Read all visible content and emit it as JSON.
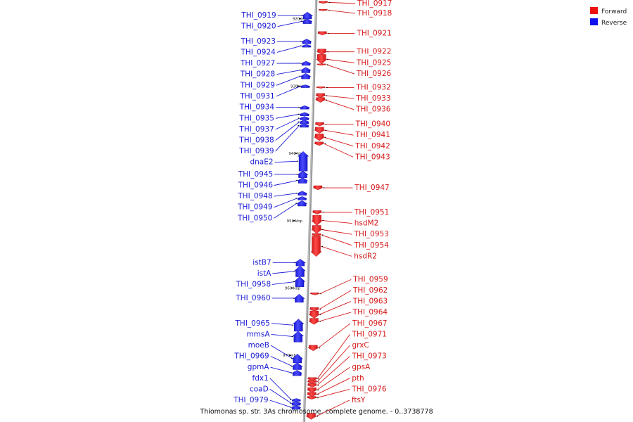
{
  "legend": [
    {
      "label": "Forward",
      "color": "#ee1111"
    },
    {
      "label": "Reverse",
      "color": "#1111ee"
    }
  ],
  "caption": "Thiomonas sp. str. 3As chromosome, complete genome. - 0..3738778",
  "ticks": [
    {
      "label": "920 kbp",
      "pos": 920
    },
    {
      "label": "930 kbp",
      "pos": 930
    },
    {
      "label": "940 kbp",
      "pos": 940
    },
    {
      "label": "950 kbp",
      "pos": 950
    },
    {
      "label": "960 kbp",
      "pos": 960
    },
    {
      "label": "970 kbp",
      "pos": 970
    }
  ],
  "reverse_genes": [
    {
      "name": "THI_0919",
      "start": 919.0,
      "end": 919.9
    },
    {
      "name": "THI_0920",
      "start": 920.0,
      "end": 920.6
    },
    {
      "name": "THI_0923",
      "start": 923.0,
      "end": 923.6
    },
    {
      "name": "THI_0924",
      "start": 923.8,
      "end": 924.1
    },
    {
      "name": "THI_0927",
      "start": 926.3,
      "end": 926.8
    },
    {
      "name": "THI_0928",
      "start": 927.2,
      "end": 927.9
    },
    {
      "name": "THI_0929",
      "start": 928.1,
      "end": 928.8
    },
    {
      "name": "THI_0931",
      "start": 929.8,
      "end": 930.1
    },
    {
      "name": "THI_0934",
      "start": 932.9,
      "end": 933.3
    },
    {
      "name": "THI_0935",
      "start": 933.9,
      "end": 934.3
    },
    {
      "name": "THI_0937",
      "start": 934.5,
      "end": 934.9
    },
    {
      "name": "THI_0938",
      "start": 935.0,
      "end": 935.5
    },
    {
      "name": "THI_0939",
      "start": 935.6,
      "end": 936.0
    },
    {
      "name": "dnaE2",
      "start": 939.7,
      "end": 942.5
    },
    {
      "name": "THI_0945",
      "start": 942.6,
      "end": 943.5
    },
    {
      "name": "THI_0946",
      "start": 943.6,
      "end": 944.3
    },
    {
      "name": "THI_0948",
      "start": 945.6,
      "end": 946.1
    },
    {
      "name": "THI_0949",
      "start": 946.4,
      "end": 946.8
    },
    {
      "name": "THI_0950",
      "start": 947.0,
      "end": 947.7
    },
    {
      "name": "istB7",
      "start": 955.7,
      "end": 956.6
    },
    {
      "name": "istA",
      "start": 956.7,
      "end": 958.2
    },
    {
      "name": "THI_0958",
      "start": 958.3,
      "end": 959.7
    },
    {
      "name": "THI_0960",
      "start": 960.9,
      "end": 962.0
    },
    {
      "name": "THI_0965",
      "start": 964.6,
      "end": 966.3
    },
    {
      "name": "mmsA",
      "start": 966.4,
      "end": 967.9
    },
    {
      "name": "moeB",
      "start": 969.8,
      "end": 971.0
    },
    {
      "name": "THI_0969",
      "start": 971.1,
      "end": 972.0
    },
    {
      "name": "gpmA",
      "start": 972.2,
      "end": 972.9
    },
    {
      "name": "fdx1",
      "start": 976.4,
      "end": 976.7
    },
    {
      "name": "coaD",
      "start": 976.8,
      "end": 977.3
    },
    {
      "name": "THI_0979",
      "start": 977.4,
      "end": 977.9
    }
  ],
  "forward_genes": [
    {
      "name": "THI_0917",
      "start": 917.4,
      "end": 917.6
    },
    {
      "name": "THI_0918",
      "start": 918.6,
      "end": 918.7
    },
    {
      "name": "THI_0921",
      "start": 921.9,
      "end": 922.3
    },
    {
      "name": "THI_0922",
      "start": 924.5,
      "end": 925.2
    },
    {
      "name": "THI_0925",
      "start": 925.3,
      "end": 926.6
    },
    {
      "name": "THI_0926",
      "start": 926.7,
      "end": 926.8
    },
    {
      "name": "THI_0932",
      "start": 930.1,
      "end": 930.2
    },
    {
      "name": "THI_0933",
      "start": 931.1,
      "end": 931.6
    },
    {
      "name": "THI_0936",
      "start": 931.7,
      "end": 932.3
    },
    {
      "name": "THI_0940",
      "start": 935.4,
      "end": 935.8
    },
    {
      "name": "THI_0941",
      "start": 936.1,
      "end": 936.9
    },
    {
      "name": "THI_0942",
      "start": 937.1,
      "end": 938.0
    },
    {
      "name": "THI_0943",
      "start": 938.3,
      "end": 938.7
    },
    {
      "name": "THI_0947",
      "start": 944.8,
      "end": 945.3
    },
    {
      "name": "THI_0951",
      "start": 948.5,
      "end": 948.9
    },
    {
      "name": "hsdM2",
      "start": 949.2,
      "end": 950.6
    },
    {
      "name": "THI_0953",
      "start": 950.7,
      "end": 951.8
    },
    {
      "name": "THI_0954",
      "start": 951.9,
      "end": 952.2
    },
    {
      "name": "hsdR2",
      "start": 952.3,
      "end": 955.2
    },
    {
      "name": "THI_0959",
      "start": 960.7,
      "end": 960.9
    },
    {
      "name": "THI_0962",
      "start": 962.9,
      "end": 963.3
    },
    {
      "name": "THI_0963",
      "start": 963.4,
      "end": 964.4
    },
    {
      "name": "THI_0964",
      "start": 964.5,
      "end": 965.3
    },
    {
      "name": "THI_0967",
      "start": 968.5,
      "end": 969.2
    },
    {
      "name": "THI_0971",
      "start": 973.3,
      "end": 973.6
    },
    {
      "name": "grxC",
      "start": 973.7,
      "end": 974.1
    },
    {
      "name": "THI_0973",
      "start": 974.2,
      "end": 974.6
    },
    {
      "name": "gpsA",
      "start": 974.8,
      "end": 975.4
    },
    {
      "name": "pth",
      "start": 975.5,
      "end": 976.0
    },
    {
      "name": "THI_0976",
      "start": 976.1,
      "end": 976.4
    },
    {
      "name": "ftsY",
      "start": 978.6,
      "end": 979.4
    }
  ]
}
